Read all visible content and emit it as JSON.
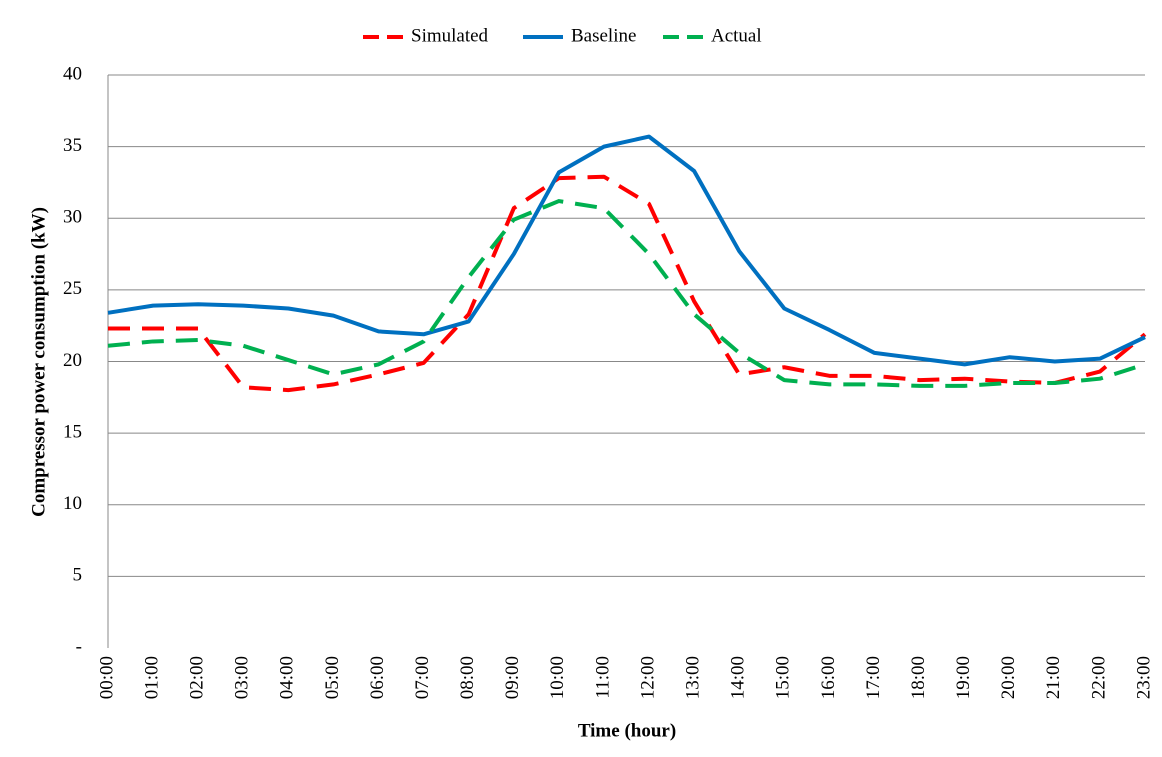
{
  "chart_data": {
    "type": "line",
    "x_label": "Time (hour)",
    "y_label": "Compressor power consumption (kW)",
    "categories": [
      "00:00",
      "01:00",
      "02:00",
      "03:00",
      "04:00",
      "05:00",
      "06:00",
      "07:00",
      "08:00",
      "09:00",
      "10:00",
      "11:00",
      "12:00",
      "13:00",
      "14:00",
      "15:00",
      "16:00",
      "17:00",
      "18:00",
      "19:00",
      "20:00",
      "21:00",
      "22:00",
      "23:00"
    ],
    "series": [
      {
        "name": "Simulated",
        "color": "#ff0000",
        "dashed": true,
        "values": [
          22.3,
          22.3,
          22.3,
          18.2,
          18.0,
          18.4,
          19.1,
          19.9,
          23.3,
          30.7,
          32.8,
          32.9,
          31.0,
          24.2,
          19.1,
          19.6,
          19.0,
          19.0,
          18.7,
          18.8,
          18.6,
          18.5,
          19.3,
          21.9
        ]
      },
      {
        "name": "Baseline",
        "color": "#0070c0",
        "dashed": false,
        "values": [
          23.4,
          23.9,
          24.0,
          23.9,
          23.7,
          23.2,
          22.1,
          21.9,
          22.8,
          27.5,
          33.2,
          35.0,
          35.7,
          33.3,
          27.7,
          23.7,
          22.2,
          20.6,
          20.2,
          19.8,
          20.3,
          20.0,
          20.2,
          21.7
        ]
      },
      {
        "name": "Actual",
        "color": "#00b050",
        "dashed": true,
        "values": [
          21.1,
          21.4,
          21.5,
          21.1,
          20.1,
          19.1,
          19.8,
          21.4,
          25.9,
          29.9,
          31.2,
          30.7,
          27.5,
          23.3,
          20.6,
          18.7,
          18.4,
          18.4,
          18.3,
          18.3,
          18.5,
          18.5,
          18.8,
          19.8
        ]
      }
    ],
    "ylim": [
      0,
      40
    ],
    "yticks": [
      {
        "value": 0,
        "label": "-"
      },
      5,
      10,
      15,
      20,
      25,
      30,
      35,
      40
    ],
    "grid": true,
    "legend": "top"
  }
}
